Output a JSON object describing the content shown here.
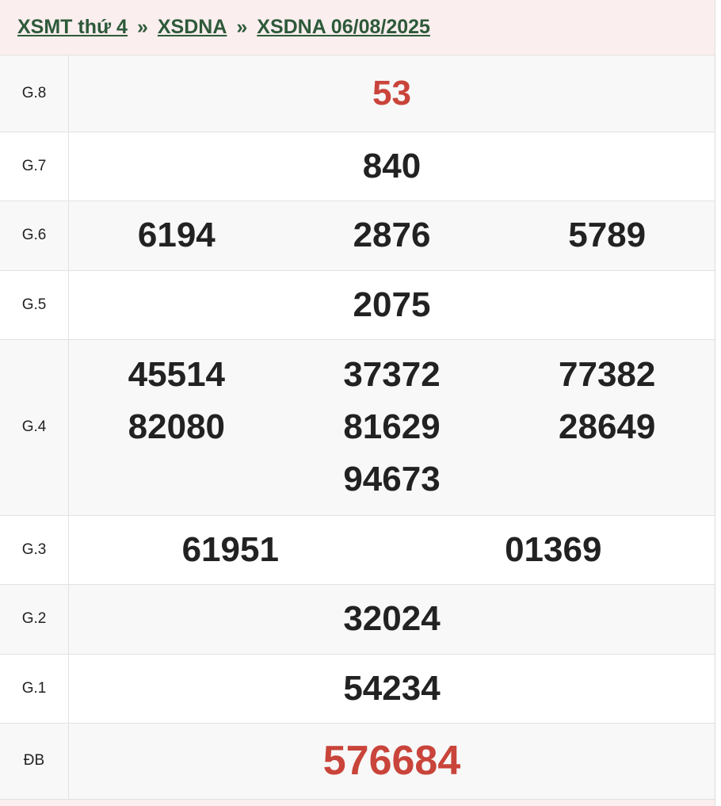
{
  "breadcrumb": [
    "XSMT thứ 4",
    "XSDNA",
    "XSDNA 06/08/2025"
  ],
  "separator": "»",
  "colors": {
    "accent_red": "#c9443a",
    "link_green": "#2d5a3a",
    "header_bg": "#fbeeee"
  },
  "prizes": [
    {
      "label": "G.8",
      "cols": [
        [
          "53"
        ]
      ],
      "red": true
    },
    {
      "label": "G.7",
      "cols": [
        [
          "840"
        ]
      ]
    },
    {
      "label": "G.6",
      "cols": [
        [
          "6194"
        ],
        [
          "2876"
        ],
        [
          "5789"
        ]
      ]
    },
    {
      "label": "G.5",
      "cols": [
        [
          "2075"
        ]
      ]
    },
    {
      "label": "G.4",
      "cols": [
        [
          "45514",
          "82080"
        ],
        [
          "37372",
          "81629",
          "94673"
        ],
        [
          "77382",
          "28649"
        ]
      ]
    },
    {
      "label": "G.3",
      "cols": [
        [
          "61951"
        ],
        [
          "01369"
        ]
      ]
    },
    {
      "label": "G.2",
      "cols": [
        [
          "32024"
        ]
      ]
    },
    {
      "label": "G.1",
      "cols": [
        [
          "54234"
        ]
      ]
    },
    {
      "label": "ĐB",
      "cols": [
        [
          "576684"
        ]
      ],
      "red": true,
      "special": true
    }
  ]
}
